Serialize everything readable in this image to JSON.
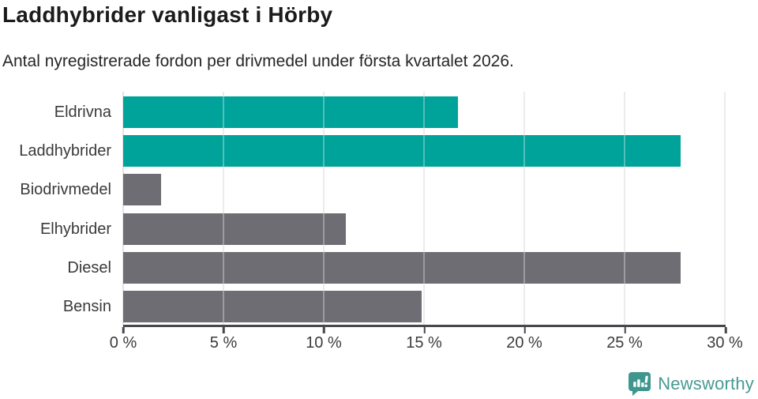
{
  "header": {
    "title": "Laddhybrider vanligast i Hörby",
    "subtitle": "Antal nyregistrerade fordon per drivmedel under första kvartalet 2026."
  },
  "chart_data": {
    "type": "bar",
    "orientation": "horizontal",
    "title": "Laddhybrider vanligast i Hörby",
    "subtitle": "Antal nyregistrerade fordon per drivmedel under första kvartalet 2026.",
    "categories": [
      "Eldrivna",
      "Laddhybrider",
      "Biodrivmedel",
      "Elhybrider",
      "Diesel",
      "Bensin"
    ],
    "values": [
      16.7,
      27.8,
      1.9,
      11.1,
      27.8,
      14.9
    ],
    "unit": "%",
    "xlabel": "",
    "ylabel": "",
    "xlim": [
      0,
      30
    ],
    "x_tick_labels": [
      "0 %",
      "5 %",
      "10 %",
      "15 %",
      "20 %",
      "25 %",
      "30 %"
    ],
    "grid": true,
    "legend": "none",
    "bar_colors": [
      "#00a39a",
      "#00a39a",
      "#6e6d73",
      "#6e6d73",
      "#6e6d73",
      "#6e6d73"
    ],
    "highlight_color": "#00a39a",
    "default_bar_color": "#6e6d73",
    "gridline_color": "#e3e3e3",
    "axis_color": "#47474c"
  },
  "footer": {
    "brand": "Newsworthy",
    "brand_color": "#479a92",
    "logo_icon": "newsworthy-speech-bubble-bar-chart-icon"
  }
}
